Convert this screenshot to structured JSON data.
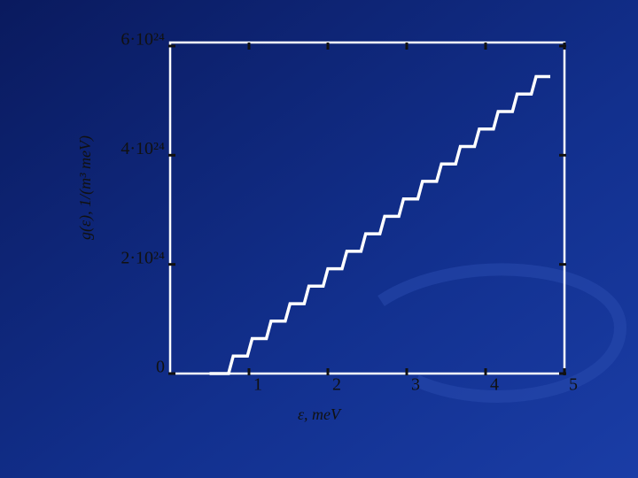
{
  "chart_data": {
    "type": "line",
    "x_label": "ε, meV",
    "y_label": "g(ε), 1/(m³ meV)",
    "x": [
      0.5,
      0.74,
      0.8,
      0.98,
      1.04,
      1.22,
      1.28,
      1.46,
      1.52,
      1.7,
      1.76,
      1.94,
      2.0,
      2.18,
      2.24,
      2.42,
      2.48,
      2.66,
      2.72,
      2.9,
      2.96,
      3.14,
      3.2,
      3.38,
      3.44,
      3.62,
      3.68,
      3.86,
      3.92,
      4.1,
      4.16,
      4.34,
      4.4,
      4.58,
      4.64,
      4.82
    ],
    "values": [
      0,
      0,
      3.2e+23,
      3.2e+23,
      6.4e+23,
      6.4e+23,
      9.6e+23,
      9.6e+23,
      1.28e+24,
      1.28e+24,
      1.6e+24,
      1.6e+24,
      1.92e+24,
      1.92e+24,
      2.24e+24,
      2.24e+24,
      2.56e+24,
      2.56e+24,
      2.88e+24,
      2.88e+24,
      3.2e+24,
      3.2e+24,
      3.52e+24,
      3.52e+24,
      3.84e+24,
      3.84e+24,
      4.16e+24,
      4.16e+24,
      4.48e+24,
      4.48e+24,
      4.8e+24,
      4.8e+24,
      5.12e+24,
      5.12e+24,
      5.44e+24,
      5.44e+24
    ],
    "color": "#ffffff",
    "xlim": [
      0,
      5
    ],
    "xticks": [
      1,
      2,
      3,
      4,
      5
    ],
    "ylim": [
      0,
      6e+24
    ],
    "yticks": [
      0,
      {
        "value": 2e+24,
        "label": "2·10²⁴"
      },
      {
        "value": 4e+24,
        "label": "4·10²⁴"
      },
      {
        "value": 6e+24,
        "label": "6·10²⁴"
      }
    ]
  }
}
